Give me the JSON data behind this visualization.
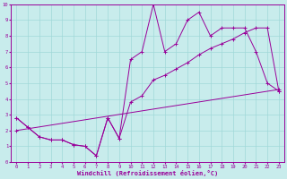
{
  "title": "",
  "xlabel": "Windchill (Refroidissement éolien,°C)",
  "ylabel": "",
  "xlim": [
    -0.5,
    23.5
  ],
  "ylim": [
    0,
    10
  ],
  "xticks": [
    0,
    1,
    2,
    3,
    4,
    5,
    6,
    7,
    8,
    9,
    10,
    11,
    12,
    13,
    14,
    15,
    16,
    17,
    18,
    19,
    20,
    21,
    22,
    23
  ],
  "yticks": [
    0,
    1,
    2,
    3,
    4,
    5,
    6,
    7,
    8,
    9,
    10
  ],
  "bg_color": "#c8ecec",
  "line_color": "#990099",
  "grid_color": "#a0d8d8",
  "line1_x": [
    0,
    1,
    2,
    3,
    4,
    5,
    6,
    7,
    8,
    9,
    10,
    11,
    12,
    13,
    14,
    15,
    16,
    17,
    18,
    19,
    20,
    21,
    22,
    23
  ],
  "line1_y": [
    2.8,
    2.2,
    1.6,
    1.4,
    1.4,
    1.1,
    1.0,
    0.4,
    2.8,
    1.5,
    6.5,
    7.0,
    10.0,
    7.0,
    7.5,
    9.0,
    9.5,
    8.0,
    8.5,
    8.5,
    8.5,
    7.0,
    5.0,
    4.5
  ],
  "line2_x": [
    0,
    1,
    2,
    3,
    4,
    5,
    6,
    7,
    8,
    9,
    10,
    11,
    12,
    13,
    14,
    15,
    16,
    17,
    18,
    19,
    20,
    21,
    22,
    23
  ],
  "line2_y": [
    2.8,
    2.2,
    1.6,
    1.4,
    1.4,
    1.1,
    1.0,
    0.4,
    2.8,
    1.5,
    3.8,
    4.2,
    5.2,
    5.5,
    5.9,
    6.3,
    6.8,
    7.2,
    7.5,
    7.8,
    8.2,
    8.5,
    8.5,
    4.5
  ],
  "line3_x": [
    0,
    23
  ],
  "line3_y": [
    2.0,
    4.6
  ],
  "marker": "+"
}
